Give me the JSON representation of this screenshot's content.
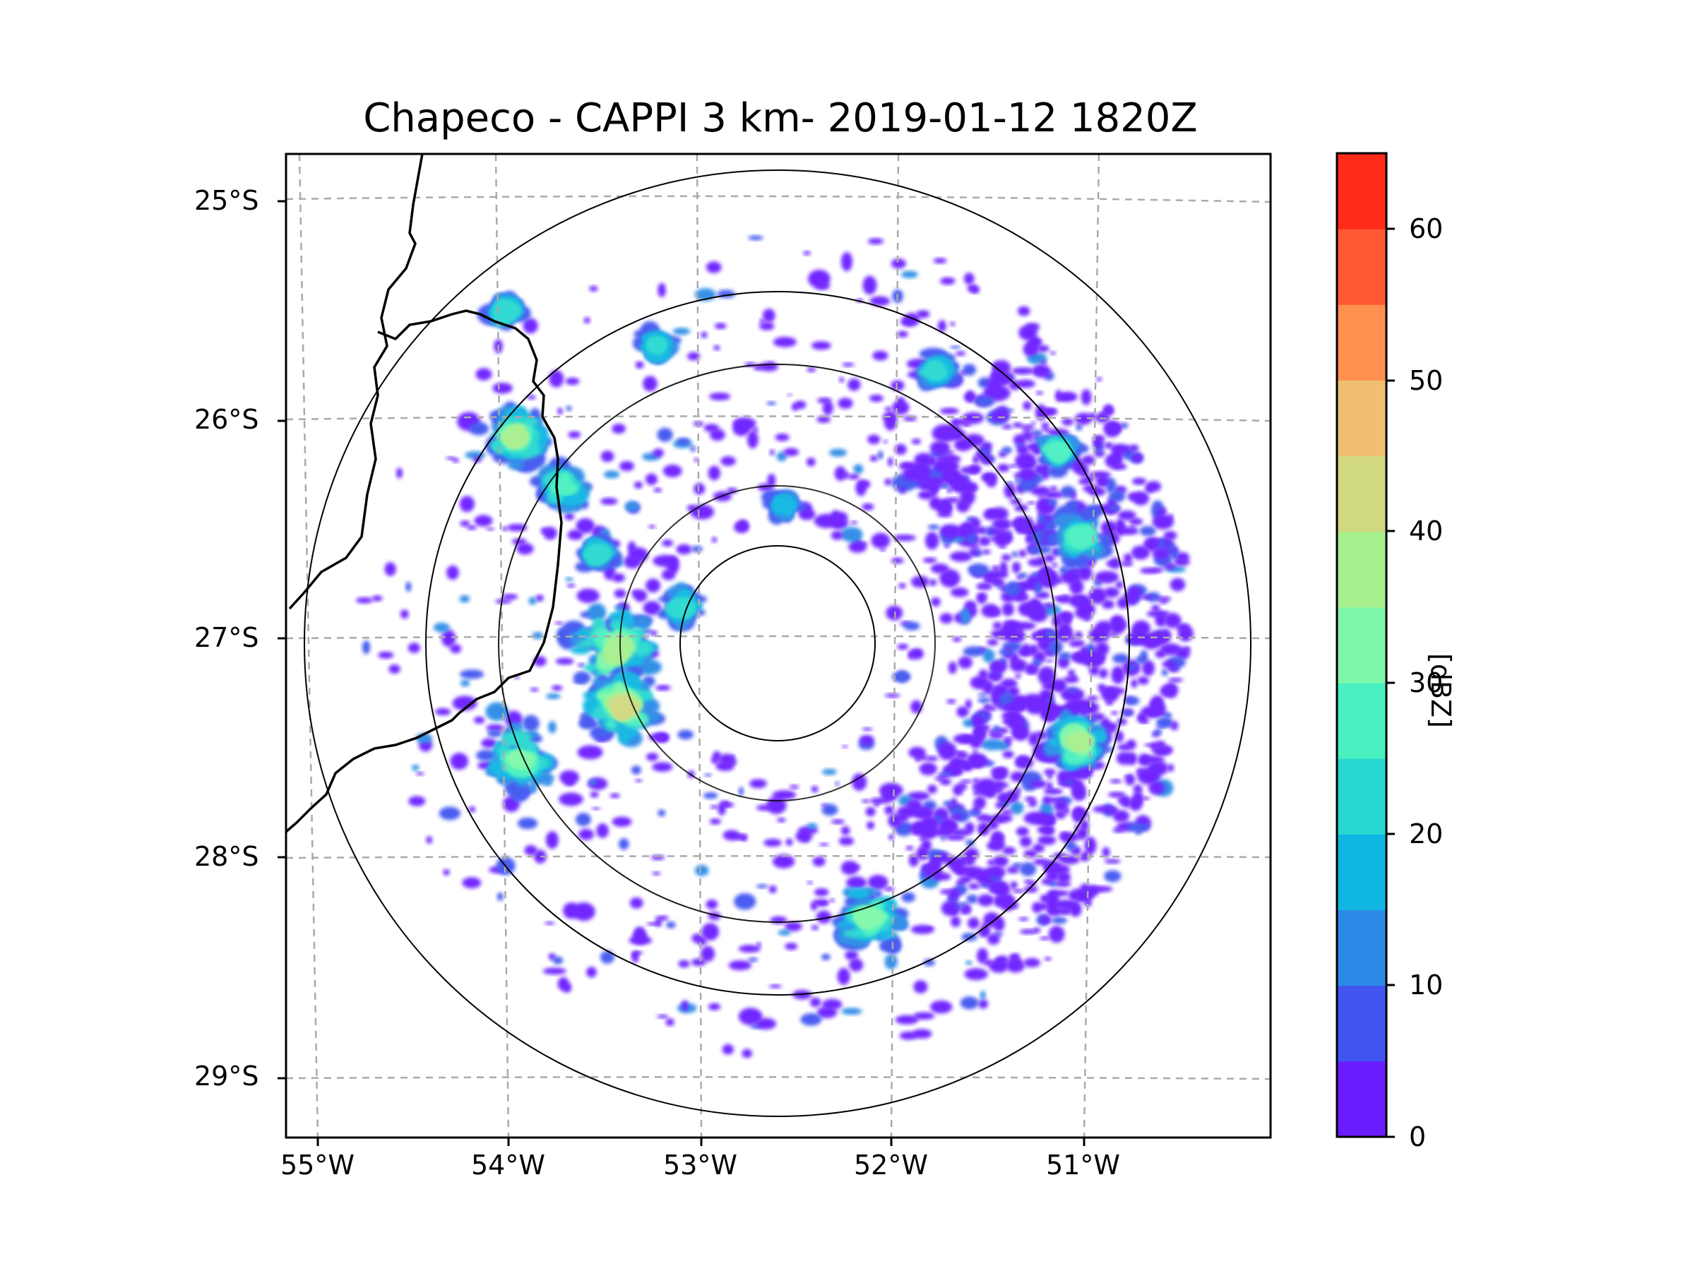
{
  "title": "Chapeco - CAPPI 3 km- 2019-01-12 1820Z",
  "map": {
    "lat_labels": [
      "25°S",
      "26°S",
      "27°S",
      "28°S",
      "29°S"
    ],
    "lon_labels": [
      "55°W",
      "54°W",
      "53°W",
      "52°W",
      "51°W"
    ],
    "radar_site": {
      "lat": -27.03,
      "lon": -52.6
    },
    "range_rings_km": [
      100,
      200,
      250
    ]
  },
  "colorbar": {
    "label": "[dBZ]",
    "ticks": [
      "0",
      "10",
      "20",
      "30",
      "40",
      "50",
      "60"
    ],
    "levels": [
      0,
      5,
      10,
      15,
      20,
      25,
      30,
      35,
      40,
      45,
      50,
      55,
      60,
      65
    ],
    "colors": [
      "#6a1cff",
      "#4154f0",
      "#2b8ae6",
      "#10b6e2",
      "#28d8d0",
      "#4af0c0",
      "#7ef8a8",
      "#a6f08e",
      "#d0d880",
      "#f0c070",
      "#ff9050",
      "#ff5a32",
      "#ff2a18"
    ]
  }
}
